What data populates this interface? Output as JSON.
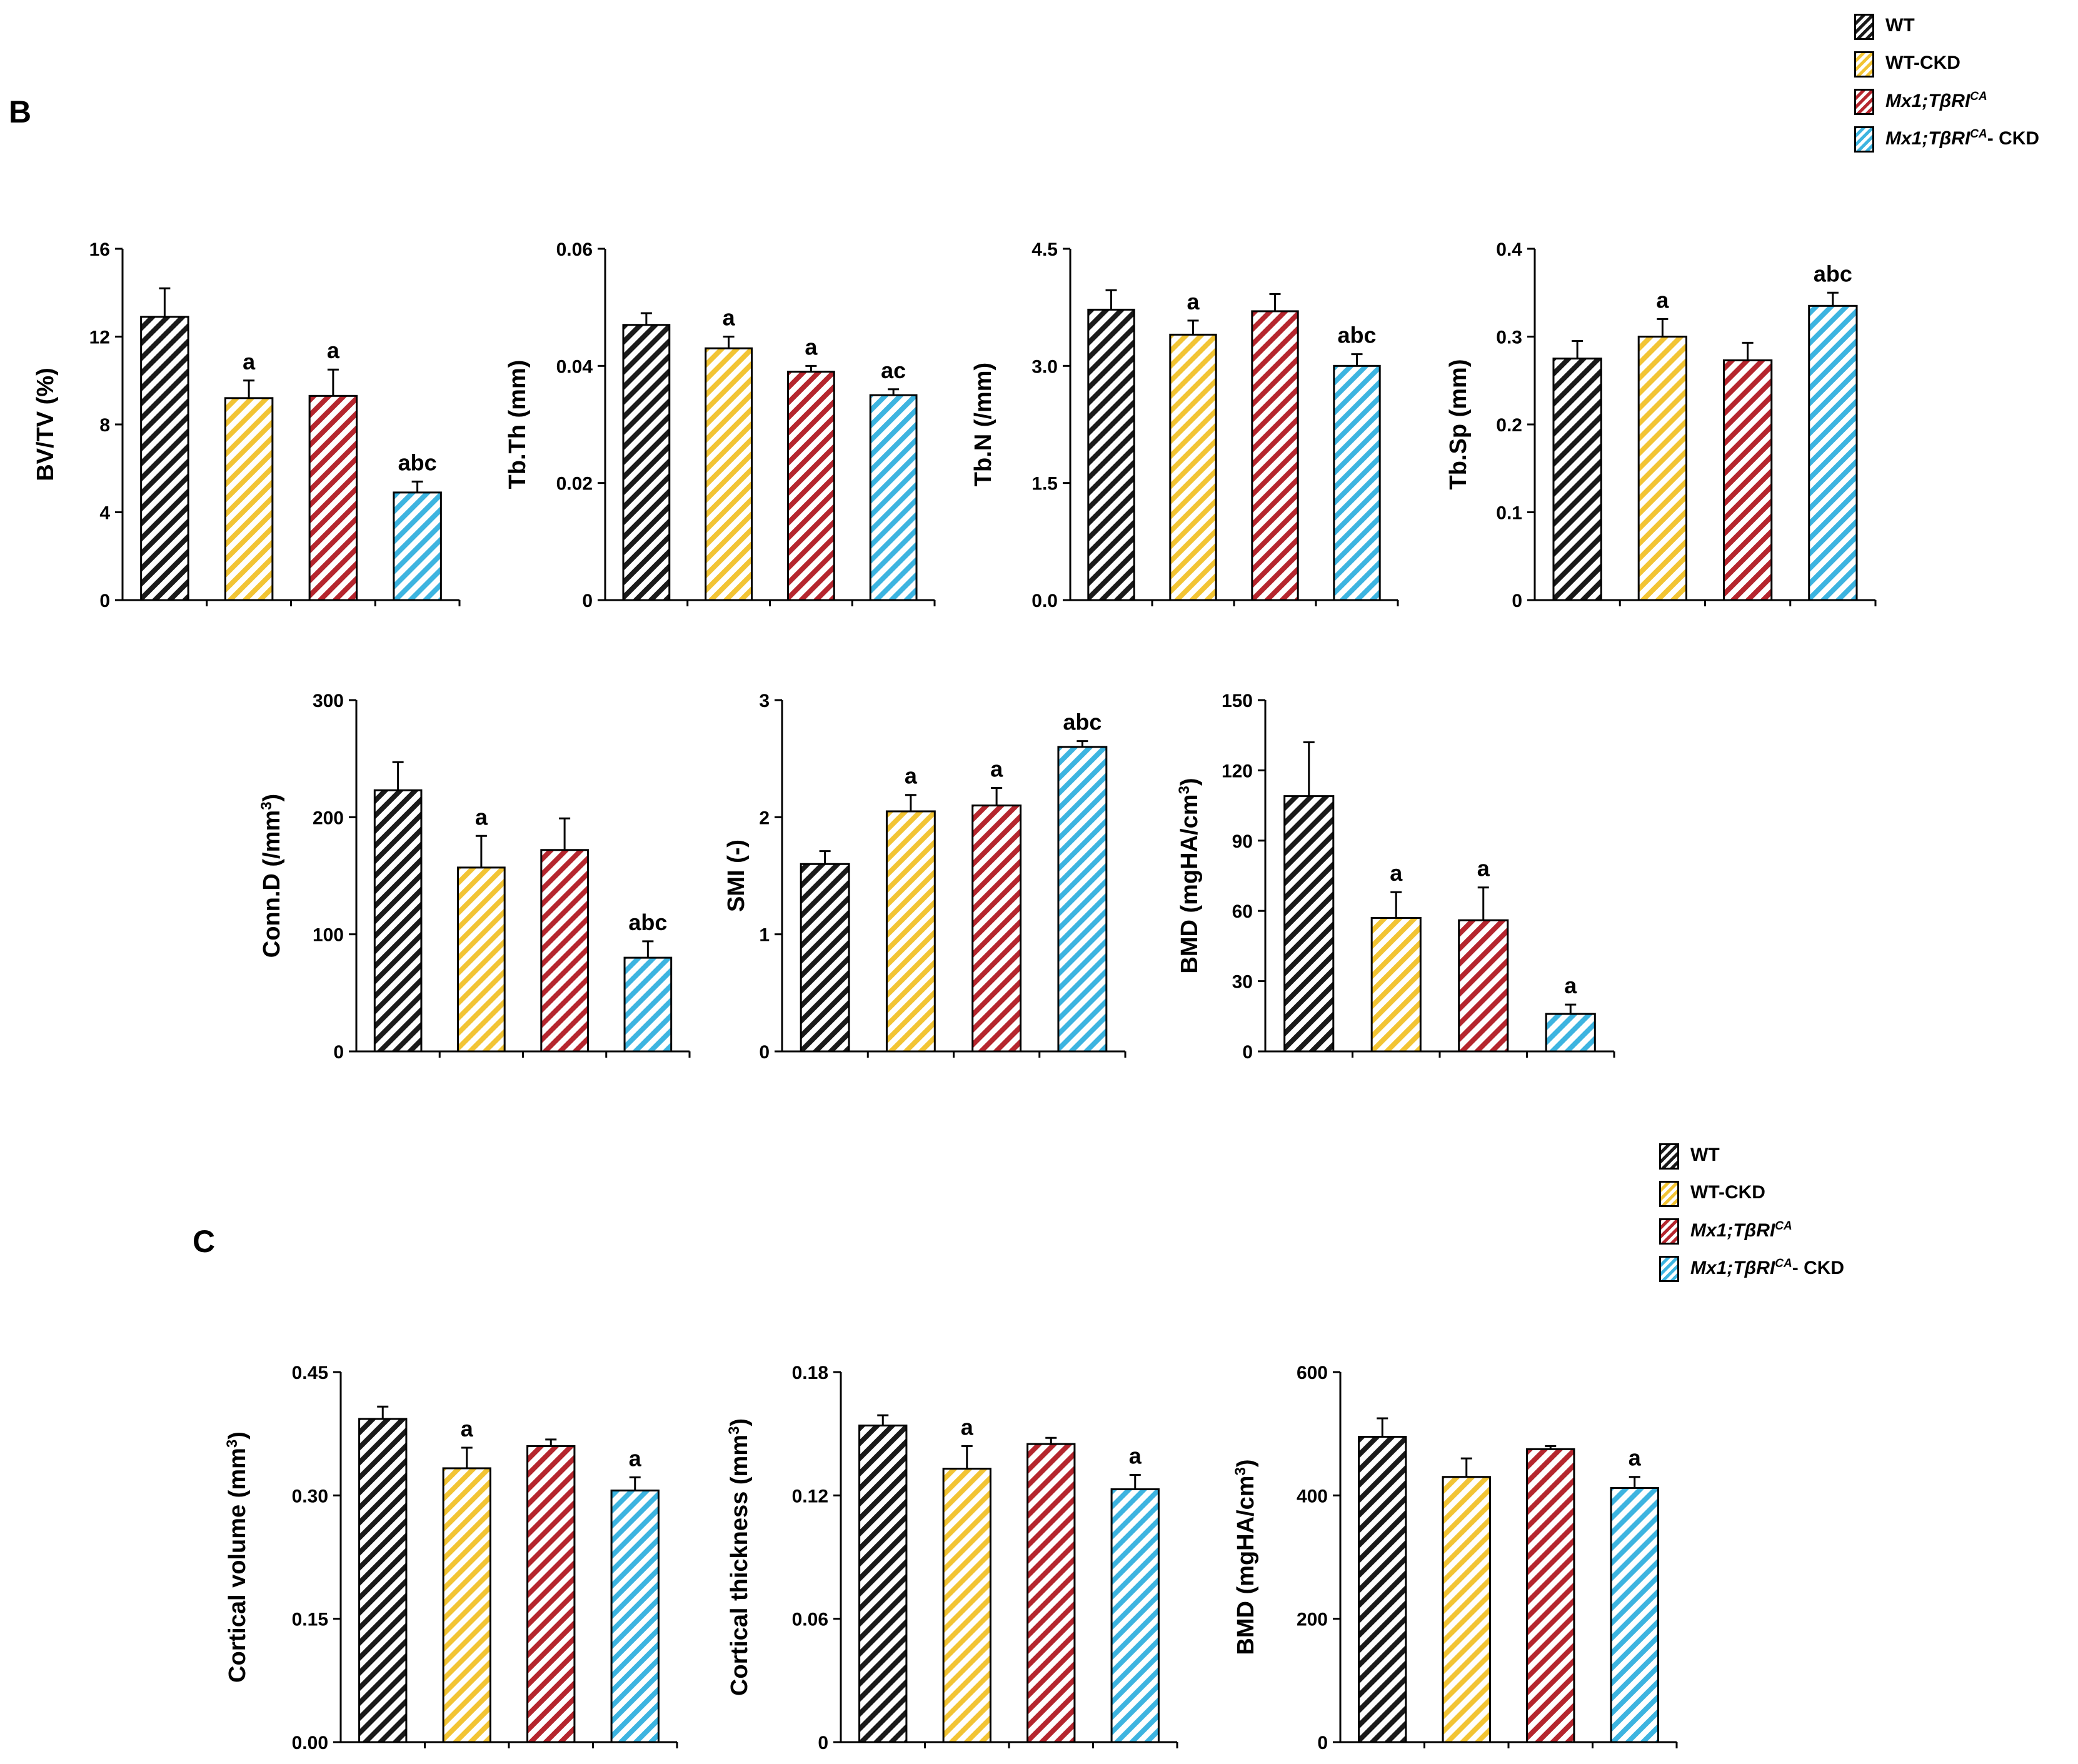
{
  "panel_labels": {
    "b": "B",
    "c": "C"
  },
  "groups": [
    {
      "key": "wt",
      "color": "#1a1a1a"
    },
    {
      "key": "wt_ckd",
      "color": "#f2c434"
    },
    {
      "key": "mx1",
      "color": "#b5262e"
    },
    {
      "key": "mx1_ckd",
      "color": "#3db4e0"
    }
  ],
  "legend": {
    "wt": "WT",
    "wt_ckd": "WT-CKD",
    "mx1": {
      "italic": "Mx1;TβRI",
      "sup": "CA",
      "suffix": ""
    },
    "mx1_ckd": {
      "italic": "Mx1;TβRI",
      "sup": "CA",
      "suffix": "- CKD"
    }
  },
  "chart_data": [
    {
      "id": "bvtv",
      "type": "bar",
      "ylabel": "BV/TV (%)",
      "ylim": [
        0,
        16
      ],
      "yticks": [
        "0",
        "4",
        "8",
        "12",
        "16"
      ],
      "values": [
        12.9,
        9.2,
        9.3,
        4.9
      ],
      "errors": [
        1.3,
        0.8,
        1.2,
        0.5
      ],
      "annotations": [
        "",
        "a",
        "a",
        "abc"
      ]
    },
    {
      "id": "tbth",
      "type": "bar",
      "ylabel": "Tb.Th (mm)",
      "ylim": [
        0,
        0.06
      ],
      "yticks": [
        "0",
        "0.02",
        "0.04",
        "0.06"
      ],
      "values": [
        0.047,
        0.043,
        0.039,
        0.035
      ],
      "errors": [
        0.002,
        0.002,
        0.001,
        0.001
      ],
      "annotations": [
        "",
        "a",
        "a",
        "ac"
      ]
    },
    {
      "id": "tbn",
      "type": "bar",
      "ylabel": "Tb.N (/mm)",
      "ylim": [
        0,
        4.5
      ],
      "yticks": [
        "0.0",
        "1.5",
        "3.0",
        "4.5"
      ],
      "values": [
        3.72,
        3.4,
        3.7,
        3.0
      ],
      "errors": [
        0.25,
        0.18,
        0.22,
        0.15
      ],
      "annotations": [
        "",
        "a",
        "",
        "abc"
      ]
    },
    {
      "id": "tbsp",
      "type": "bar",
      "ylabel": "Tb.Sp (mm)",
      "ylim": [
        0,
        0.4
      ],
      "yticks": [
        "0",
        "0.1",
        "0.2",
        "0.3",
        "0.4"
      ],
      "values": [
        0.275,
        0.3,
        0.273,
        0.335
      ],
      "errors": [
        0.02,
        0.02,
        0.02,
        0.015
      ],
      "annotations": [
        "",
        "a",
        "",
        "abc"
      ]
    },
    {
      "id": "connd",
      "type": "bar",
      "ylabel": "Conn.D (/mm",
      "ylabel_sup": "3",
      "ylabel_tail": ")",
      "ylim": [
        0,
        300
      ],
      "yticks": [
        "0",
        "100",
        "200",
        "300"
      ],
      "values": [
        223,
        157,
        172,
        80
      ],
      "errors": [
        24,
        27,
        27,
        14
      ],
      "annotations": [
        "",
        "a",
        "",
        "abc"
      ]
    },
    {
      "id": "smi",
      "type": "bar",
      "ylabel": "SMI (-)",
      "ylim": [
        0,
        3
      ],
      "yticks": [
        "0",
        "1",
        "2",
        "3"
      ],
      "values": [
        1.6,
        2.05,
        2.1,
        2.6
      ],
      "errors": [
        0.11,
        0.14,
        0.15,
        0.05
      ],
      "annotations": [
        "",
        "a",
        "a",
        "abc"
      ]
    },
    {
      "id": "bmd_tb",
      "type": "bar",
      "ylabel": "BMD (mgHA/cm",
      "ylabel_sup": "3",
      "ylabel_tail": ")",
      "ylim": [
        0,
        150
      ],
      "yticks": [
        "0",
        "30",
        "60",
        "90",
        "120",
        "150"
      ],
      "values": [
        109,
        57,
        56,
        16
      ],
      "errors": [
        23,
        11,
        14,
        4
      ],
      "annotations": [
        "",
        "a",
        "a",
        "a"
      ]
    },
    {
      "id": "ctvol",
      "type": "bar",
      "ylabel": "Cortical volume (mm",
      "ylabel_sup": "3",
      "ylabel_tail": ")",
      "ylim": [
        0,
        0.45
      ],
      "yticks": [
        "0.00",
        "0.15",
        "0.30",
        "0.45"
      ],
      "values": [
        0.393,
        0.333,
        0.36,
        0.306
      ],
      "errors": [
        0.015,
        0.025,
        0.008,
        0.016
      ],
      "annotations": [
        "",
        "a",
        "",
        "a"
      ]
    },
    {
      "id": "ctth",
      "type": "bar",
      "ylabel": "Cortical thickness (mm",
      "ylabel_sup": "3",
      "ylabel_tail": ")",
      "ylim": [
        0,
        0.18
      ],
      "yticks": [
        "0",
        "0.06",
        "0.12",
        "0.18"
      ],
      "values": [
        0.154,
        0.133,
        0.145,
        0.123
      ],
      "errors": [
        0.005,
        0.011,
        0.003,
        0.007
      ],
      "annotations": [
        "",
        "a",
        "",
        "a"
      ]
    },
    {
      "id": "bmd_ct",
      "type": "bar",
      "ylabel": "BMD (mgHA/cm",
      "ylabel_sup": "3",
      "ylabel_tail": ")",
      "ylim": [
        0,
        600
      ],
      "yticks": [
        "0",
        "200",
        "400",
        "600"
      ],
      "values": [
        495,
        430,
        475,
        412
      ],
      "errors": [
        30,
        30,
        5,
        18
      ],
      "annotations": [
        "",
        "",
        "",
        "a"
      ]
    }
  ]
}
